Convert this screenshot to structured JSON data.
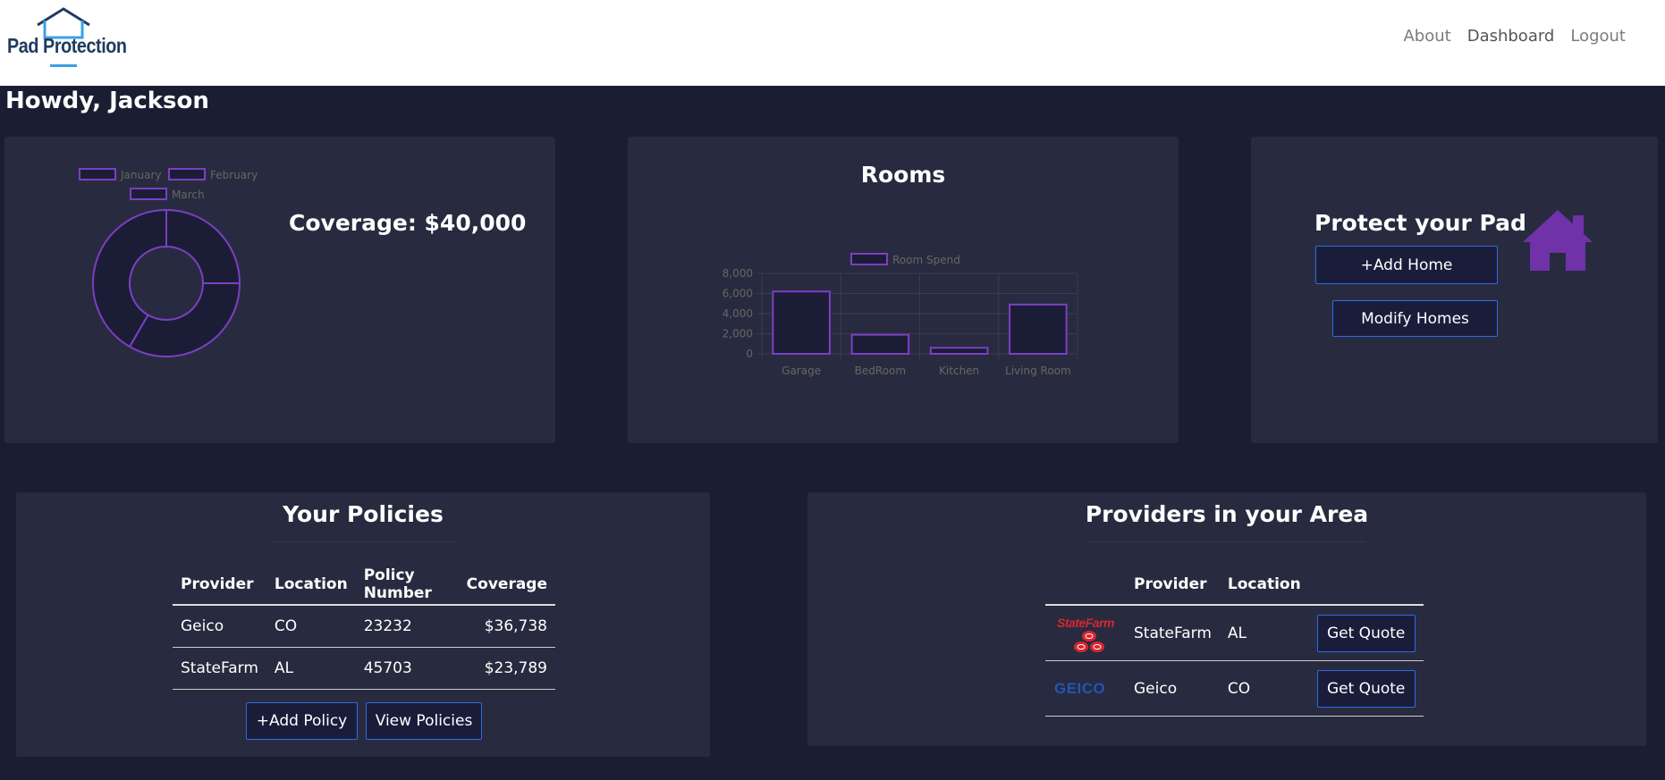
{
  "brand": {
    "name": "Pad Protection",
    "color": "#1f3b5e",
    "accent": "#3aa0e8"
  },
  "nav": [
    {
      "label": "About",
      "active": false
    },
    {
      "label": "Dashboard",
      "active": true
    },
    {
      "label": "Logout",
      "active": false
    }
  ],
  "greeting": "Howdy, Jackson",
  "coverage_card": {
    "coverage_text": "Coverage: $40,000",
    "legend": [
      "January",
      "February",
      "March"
    ]
  },
  "rooms_card": {
    "title": "Rooms"
  },
  "protect_card": {
    "title": "Protect your Pad",
    "add_home": "+Add Home",
    "modify_homes": "Modify Homes",
    "icon": "house-icon",
    "icon_color": "#6f32a8"
  },
  "policies": {
    "title": "Your Policies",
    "headers": [
      "Provider",
      "Location",
      "Policy Number",
      "Coverage"
    ],
    "rows": [
      [
        "Geico",
        "CO",
        "23232",
        "$36,738"
      ],
      [
        "StateFarm",
        "AL",
        "45703",
        "$23,789"
      ]
    ],
    "add_policy": "+Add Policy",
    "view_policies": "View Policies"
  },
  "providers": {
    "title": "Providers in your Area",
    "headers": [
      "",
      "Provider",
      "Location",
      ""
    ],
    "rows": [
      {
        "logo_text": "StateFarm",
        "provider": "StateFarm",
        "location": "AL",
        "action": "Get Quote"
      },
      {
        "logo_text": "GEICO",
        "provider": "Geico",
        "location": "CO",
        "action": "Get Quote"
      }
    ]
  },
  "chart_data": [
    {
      "type": "pie",
      "variant": "doughnut",
      "title": "",
      "categories": [
        "January",
        "February",
        "March"
      ],
      "values": [
        3,
        4,
        5
      ],
      "stroke_color": "#7b3fc4",
      "fill_color": "#1b1d36",
      "legend_position": "top"
    },
    {
      "type": "bar",
      "title": "",
      "categories": [
        "Garage",
        "BedRoom",
        "Kitchen",
        "Living Room"
      ],
      "series": [
        {
          "name": "Room Spend",
          "values": [
            6200,
            1900,
            600,
            4900
          ]
        }
      ],
      "ylim": [
        0,
        8000
      ],
      "yticks": [
        "8,000",
        "6,000",
        "4,000",
        "2,000",
        "0"
      ],
      "grid": true,
      "stroke_color": "#7b3fc4",
      "fill_color": "#1b1d36",
      "legend_position": "top"
    }
  ]
}
